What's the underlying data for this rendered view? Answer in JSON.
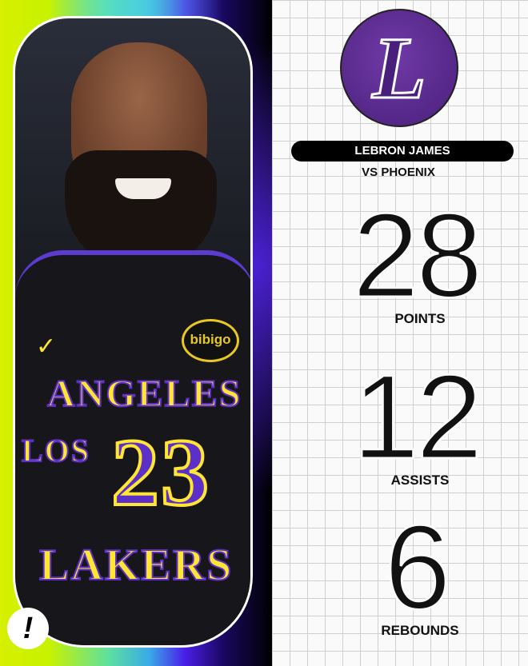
{
  "player": {
    "name": "LEBRON JAMES",
    "opponent": "VS PHOENIX"
  },
  "team_logo": {
    "letter": "L",
    "color": "#552583"
  },
  "jersey": {
    "line1": "ANGELES",
    "line1a": "LOS",
    "number": "23",
    "team": "LAKERS",
    "sponsor": "bibigo",
    "color": "#ffe632"
  },
  "brand_badge": "!",
  "stats": [
    {
      "value": "28",
      "label": "POINTS"
    },
    {
      "value": "12",
      "label": "ASSISTS"
    },
    {
      "value": "6",
      "label": "REBOUNDS"
    }
  ]
}
